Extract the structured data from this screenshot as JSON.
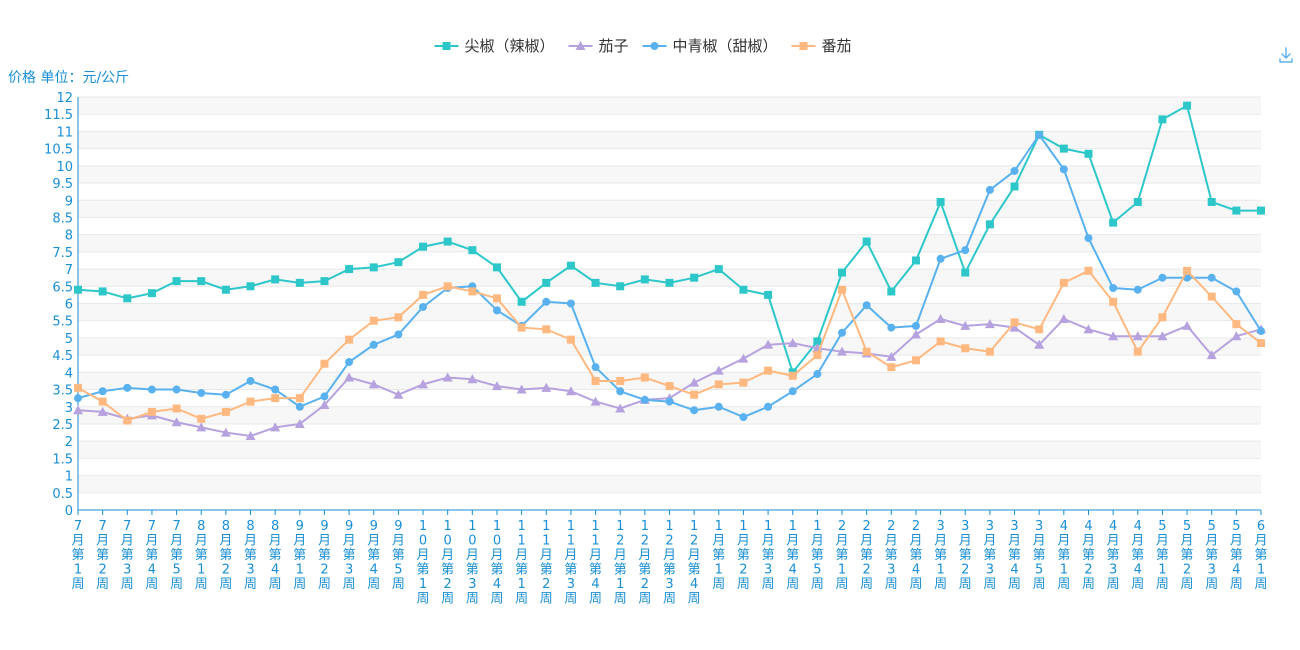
{
  "chart_data": {
    "type": "line",
    "title": "",
    "ylabel": "价格 单位：元/公斤",
    "ylim": [
      0,
      12
    ],
    "y_ticks": [
      "0",
      "0.5",
      "1",
      "1.5",
      "2",
      "2.5",
      "3",
      "3.5",
      "4",
      "4.5",
      "5",
      "5.5",
      "6",
      "6.5",
      "7",
      "7.5",
      "8",
      "8.5",
      "9",
      "9.5",
      "10",
      "10.5",
      "11",
      "11.5",
      "12"
    ],
    "grid": true,
    "legend_position": "top",
    "categories": [
      "7月第1周",
      "7月第2周",
      "7月第3周",
      "7月第4周",
      "7月第5周",
      "8月第1周",
      "8月第2周",
      "8月第3周",
      "8月第4周",
      "9月第1周",
      "9月第2周",
      "9月第3周",
      "9月第4周",
      "9月第5周",
      "10月第1周",
      "10月第2周",
      "10月第3周",
      "10月第4周",
      "11月第1周",
      "11月第2周",
      "11月第3周",
      "11月第4周",
      "12月第1周",
      "12月第2周",
      "12月第3周",
      "12月第4周",
      "1月第1周",
      "1月第2周",
      "1月第3周",
      "1月第4周",
      "1月第5周",
      "2月第1周",
      "2月第2周",
      "2月第3周",
      "2月第4周",
      "3月第1周",
      "3月第2周",
      "3月第3周",
      "3月第4周",
      "3月第5周",
      "4月第1周",
      "4月第2周",
      "4月第3周",
      "4月第4周",
      "5月第1周",
      "5月第2周",
      "5月第3周",
      "5月第4周",
      "6月第1周"
    ],
    "series": [
      {
        "name": "尖椒（辣椒）",
        "color": "#2ec7c9",
        "marker": "square",
        "values": [
          6.4,
          6.35,
          6.15,
          6.3,
          6.65,
          6.65,
          6.4,
          6.5,
          6.7,
          6.6,
          6.65,
          7.0,
          7.05,
          7.2,
          7.65,
          7.8,
          7.55,
          7.05,
          6.05,
          6.6,
          7.1,
          6.6,
          6.5,
          6.7,
          6.6,
          6.75,
          7.0,
          6.4,
          6.25,
          4.0,
          4.9,
          6.9,
          7.8,
          6.35,
          7.25,
          8.95,
          6.9,
          8.3,
          9.4,
          10.9,
          10.5,
          10.35,
          8.35,
          8.95,
          11.35,
          11.75,
          8.95,
          8.7,
          8.7
        ]
      },
      {
        "name": "茄子",
        "color": "#b6a2de",
        "marker": "triangle",
        "values": [
          2.9,
          2.85,
          2.65,
          2.75,
          2.55,
          2.4,
          2.25,
          2.15,
          2.4,
          2.5,
          3.05,
          3.85,
          3.65,
          3.35,
          3.65,
          3.85,
          3.8,
          3.6,
          3.5,
          3.55,
          3.45,
          3.15,
          2.95,
          3.2,
          3.25,
          3.7,
          4.05,
          4.4,
          4.8,
          4.85,
          4.7,
          4.6,
          4.55,
          4.45,
          5.1,
          5.55,
          5.35,
          5.4,
          5.3,
          4.8,
          5.55,
          5.25,
          5.05,
          5.05,
          5.05,
          5.35,
          4.5,
          5.05,
          5.25
        ]
      },
      {
        "name": "中青椒（甜椒）",
        "color": "#5ab1ef",
        "marker": "circle",
        "values": [
          3.25,
          3.45,
          3.55,
          3.5,
          3.5,
          3.4,
          3.35,
          3.75,
          3.5,
          3.0,
          3.3,
          4.3,
          4.8,
          5.1,
          5.9,
          6.45,
          6.5,
          5.8,
          5.35,
          6.05,
          6.0,
          4.15,
          3.45,
          3.2,
          3.15,
          2.9,
          3.0,
          2.7,
          3.0,
          3.45,
          3.95,
          5.15,
          5.95,
          5.3,
          5.35,
          7.3,
          7.55,
          9.3,
          9.85,
          10.9,
          9.9,
          7.9,
          6.45,
          6.4,
          6.75,
          6.75,
          6.75,
          6.35,
          5.2
        ]
      },
      {
        "name": "番茄",
        "color": "#ffb980",
        "marker": "square",
        "values": [
          3.55,
          3.15,
          2.6,
          2.85,
          2.95,
          2.65,
          2.85,
          3.15,
          3.25,
          3.25,
          4.25,
          4.95,
          5.5,
          5.6,
          6.25,
          6.5,
          6.35,
          6.15,
          5.3,
          5.25,
          4.95,
          3.75,
          3.75,
          3.85,
          3.6,
          3.35,
          3.65,
          3.7,
          4.05,
          3.9,
          4.5,
          6.4,
          4.6,
          4.15,
          4.35,
          4.9,
          4.7,
          4.6,
          5.45,
          5.25,
          6.6,
          6.95,
          6.05,
          4.6,
          5.6,
          6.95,
          6.2,
          5.4,
          4.85
        ]
      }
    ]
  },
  "toolbar": {
    "download_icon": "download-icon"
  },
  "colors": {
    "axis": "#1a8fd6",
    "grid_band": "#f7f7f7",
    "grid_line": "#e9e9e9"
  }
}
